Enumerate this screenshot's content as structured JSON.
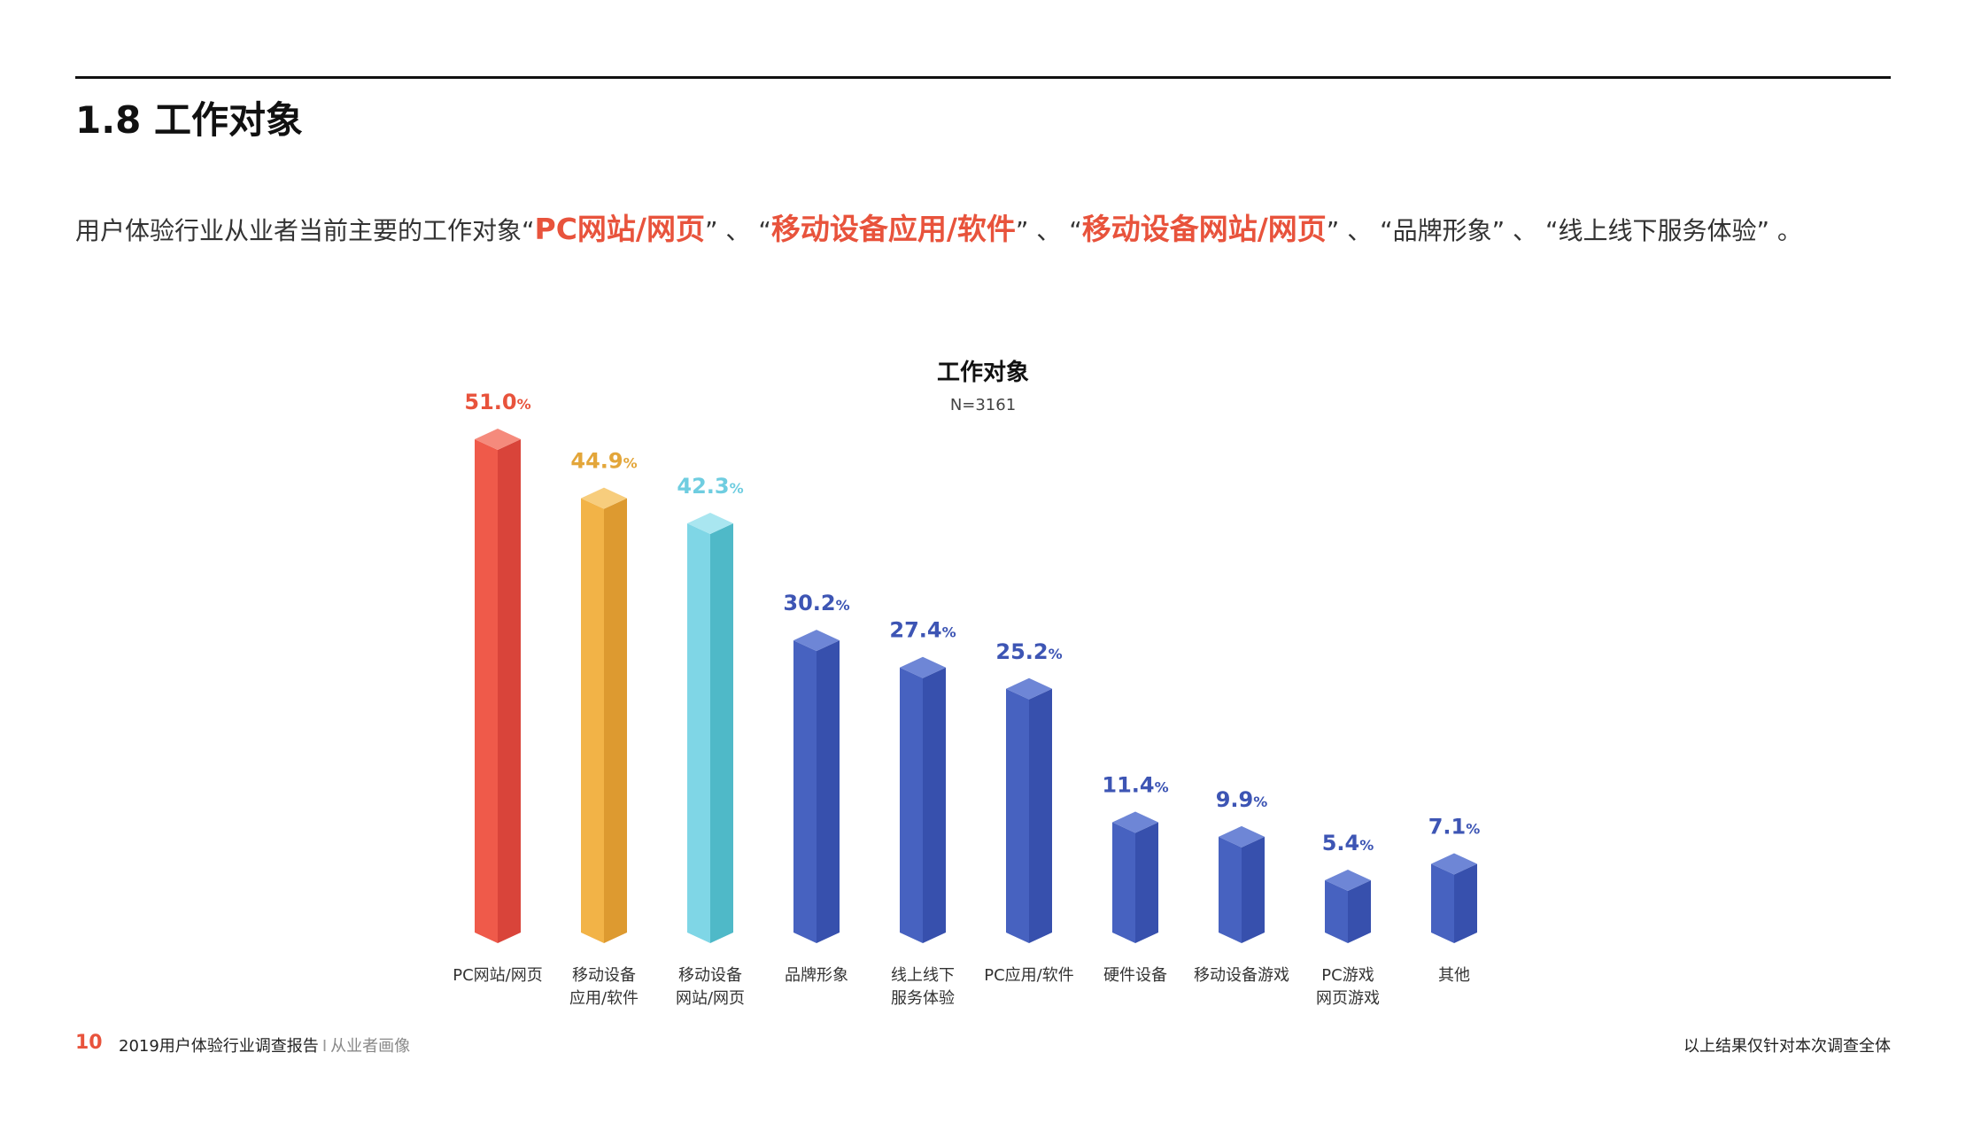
{
  "header": {
    "section_title": "1.8 工作对象"
  },
  "summary": {
    "prefix": "用户体验行业从业者当前主要的工作对象",
    "items": [
      {
        "text": "PC网站/网页",
        "highlight": true
      },
      {
        "text": "移动设备应用/软件",
        "highlight": true
      },
      {
        "text": "移动设备网站/网页",
        "highlight": true
      },
      {
        "text": "品牌形象",
        "highlight": false
      },
      {
        "text": "线上线下服务体验",
        "highlight": false
      }
    ],
    "separator": "、",
    "open_quote": "“",
    "close_quote": "”",
    "ending": "。"
  },
  "chart_data": {
    "type": "bar",
    "title": "工作对象",
    "subtitle": "N=3161",
    "unit": "%",
    "categories": [
      [
        "PC网站/网页"
      ],
      [
        "移动设备",
        "应用/软件"
      ],
      [
        "移动设备",
        "网站/网页"
      ],
      [
        "品牌形象"
      ],
      [
        "线上线下",
        "服务体验"
      ],
      [
        "PC应用/软件"
      ],
      [
        "硬件设备"
      ],
      [
        "移动设备游戏"
      ],
      [
        "PC游戏",
        "网页游戏"
      ],
      [
        "其他"
      ]
    ],
    "values": [
      51.0,
      44.9,
      42.3,
      30.2,
      27.4,
      25.2,
      11.4,
      9.9,
      5.4,
      7.1
    ],
    "value_labels": [
      "51.0",
      "44.9",
      "42.3",
      "30.2",
      "27.4",
      "25.2",
      "11.4",
      "9.9",
      "5.4",
      "7.1"
    ],
    "colors": {
      "red": {
        "front": "#ef5a4a",
        "side": "#d9443a",
        "top": "#f58a7c",
        "label": "#e8533c"
      },
      "orange": {
        "front": "#f2b347",
        "side": "#dd9a30",
        "top": "#f7cd7d",
        "label": "#e3a63a"
      },
      "cyan": {
        "front": "#7fd6e6",
        "side": "#4fb9c8",
        "top": "#a9e6f0",
        "label": "#6fcde0"
      },
      "blue": {
        "front": "#4762c0",
        "side": "#3750ad",
        "top": "#6e86d6",
        "label": "#3d55b4"
      }
    },
    "bar_colors": [
      "red",
      "orange",
      "cyan",
      "blue",
      "blue",
      "blue",
      "blue",
      "blue",
      "blue",
      "blue"
    ],
    "ylim": [
      0,
      51.0
    ]
  },
  "footer": {
    "page_number": "10",
    "report_title": "2019用户体验行业调查报告",
    "separator": "I",
    "section": "从业者画像",
    "note": "以上结果仅针对本次调查全体"
  }
}
